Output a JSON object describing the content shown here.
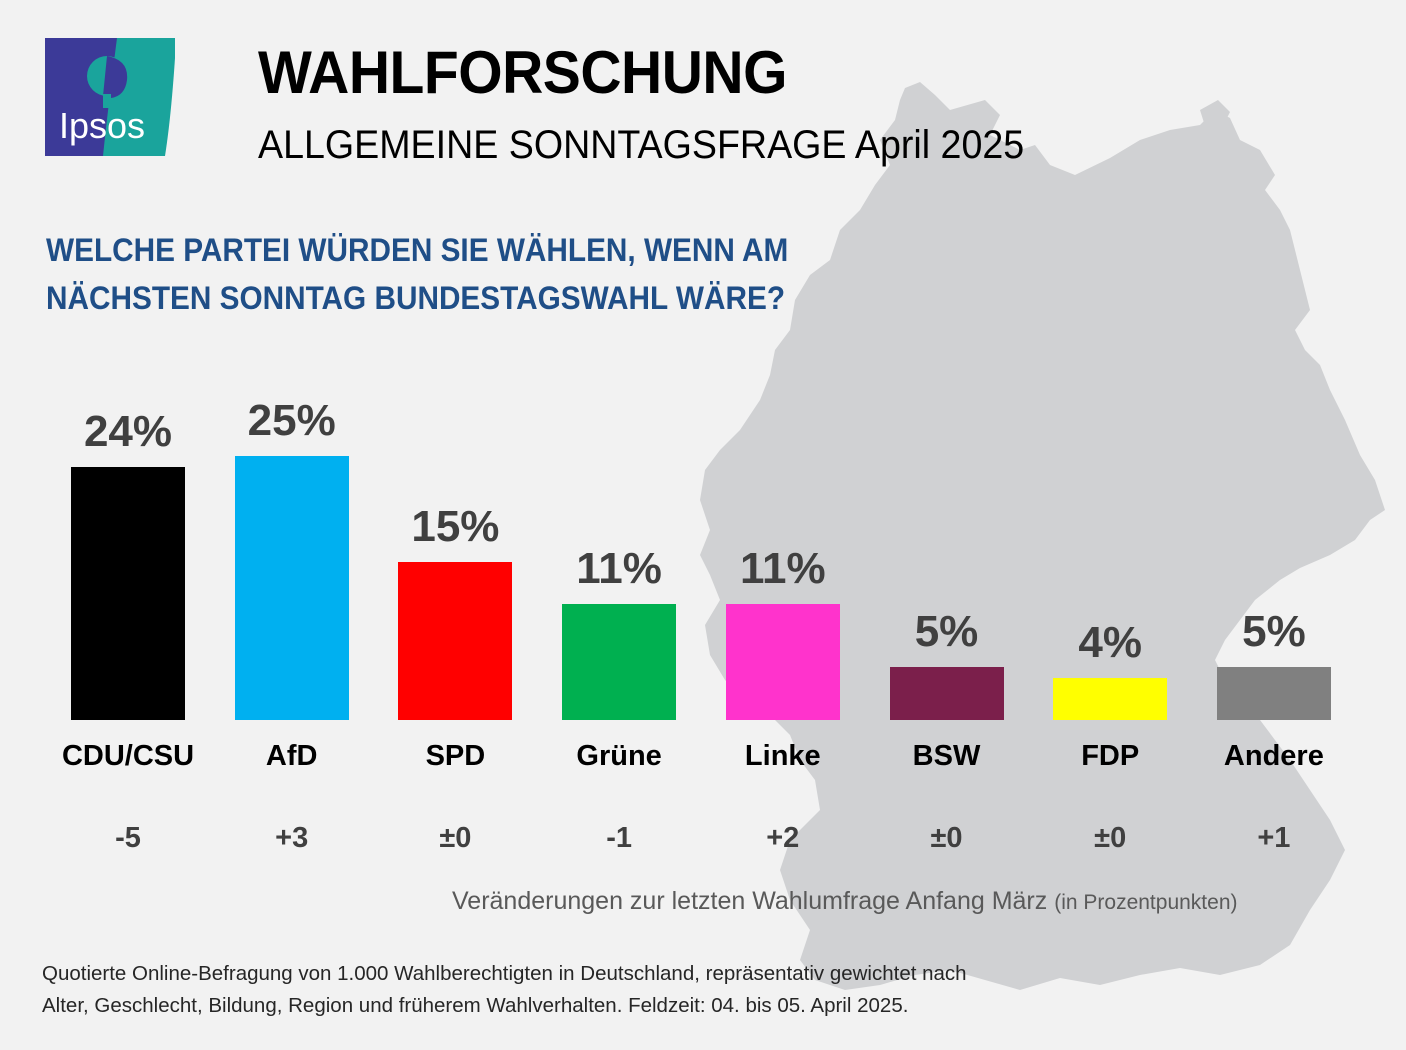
{
  "logo": {
    "brand_name": "Ipsos",
    "colors": {
      "left": "#3c3a98",
      "right": "#1aa49c",
      "text": "#ffffff"
    }
  },
  "header": {
    "title": "WAHLFORSCHUNG",
    "subtitle": "ALLGEMEINE SONNTAGSFRAGE April 2025"
  },
  "question": {
    "line1": "WELCHE PARTEI WÜRDEN SIE WÄHLEN, WENN AM",
    "line2": "NÄCHSTEN SONNTAG BUNDESTAGSWAHL WÄRE?"
  },
  "chart_data": {
    "type": "bar",
    "title": "WELCHE PARTEI WÜRDEN SIE WÄHLEN, WENN AM NÄCHSTEN SONNTAG BUNDESTAGSWAHL WÄRE?",
    "xlabel": "",
    "ylabel": "",
    "unit": "%",
    "ylim": [
      0,
      25
    ],
    "grid": false,
    "legend": "none",
    "categories": [
      "CDU/CSU",
      "AfD",
      "SPD",
      "Grüne",
      "Linke",
      "BSW",
      "FDP",
      "Andere"
    ],
    "values": [
      24,
      25,
      15,
      11,
      11,
      5,
      4,
      5
    ],
    "value_labels": [
      "24%",
      "25%",
      "15%",
      "11%",
      "11%",
      "5%",
      "4%",
      "5%"
    ],
    "changes": [
      -5,
      3,
      0,
      -1,
      2,
      0,
      0,
      1
    ],
    "change_labels": [
      "-5",
      "+3",
      "±0",
      "-1",
      "+2",
      "±0",
      "±0",
      "+1"
    ],
    "colors": [
      "#000000",
      "#00b0f0",
      "#ff0000",
      "#00b050",
      "#ff33cc",
      "#7b1f4b",
      "#ffff00",
      "#808080"
    ],
    "change_note": "Veränderungen zur letzten Wahlumfrage Anfang März",
    "change_note_unit": "(in Prozentpunkten)"
  },
  "footnote": {
    "line1": "Quotierte Online-Befragung von 1.000 Wahlberechtigten in Deutschland, repräsentativ gewichtet nach",
    "line2": "Alter, Geschlecht, Bildung, Region und früherem Wahlverhalten. Feldzeit: 04. bis 05. April 2025."
  },
  "background": {
    "map_color": "#d0d1d3",
    "page_color": "#f2f2f2"
  }
}
